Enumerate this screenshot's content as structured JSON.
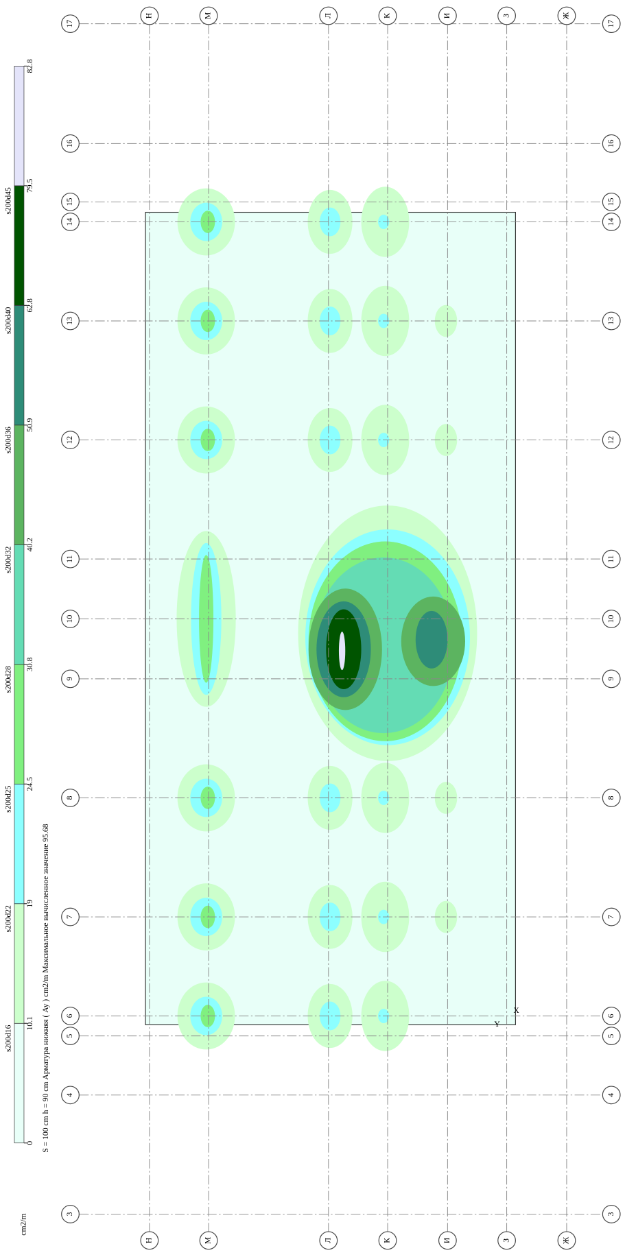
{
  "legend": {
    "unit": "cm2/m",
    "bounds": [
      0,
      10.1,
      19,
      24.5,
      30.8,
      40.2,
      50.9,
      62.8,
      79.5,
      82.8
    ],
    "colors": [
      "#e8fff8",
      "#ccffcc",
      "#8cffff",
      "#80f080",
      "#64dcb4",
      "#5cb460",
      "#2e8c78",
      "#005400",
      "#e4e4fa"
    ],
    "labels": [
      "s200d16",
      "s200d22",
      "s200d25",
      "s200d28",
      "s200d32",
      "s200d36",
      "s200d40",
      "s200d45"
    ]
  },
  "caption": "S = 100 cm  h = 90 cm  Арматура нижняя ( Ay ) cm2/m  Максимальное вычисленное значение 95.68",
  "grid": {
    "rows": [
      "17",
      "16",
      "15",
      "14",
      "13",
      "12",
      "11",
      "10",
      "9",
      "8",
      "7",
      "6",
      "5",
      "4",
      "3"
    ],
    "columns": [
      "Н",
      "М",
      "Л",
      "К",
      "И",
      "З",
      "Ж"
    ]
  },
  "axis_marks": [
    "Y",
    "X"
  ]
}
